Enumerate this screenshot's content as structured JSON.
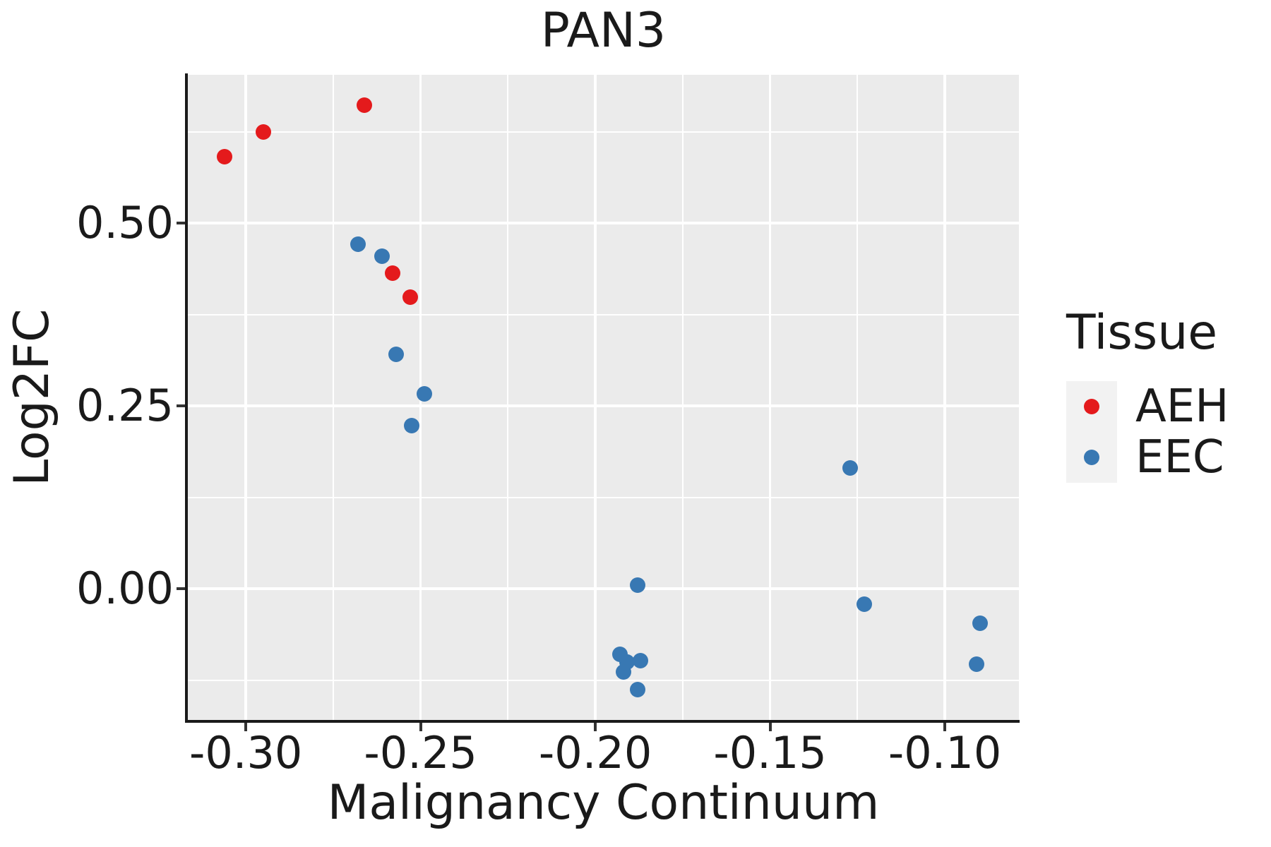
{
  "chart_data": {
    "type": "scatter",
    "title": "PAN3",
    "xlabel": "Malignancy Continuum",
    "ylabel": "Log2FC",
    "xlim": [
      -0.3166,
      -0.0788
    ],
    "ylim": [
      -0.1795,
      0.7027
    ],
    "x_ticks": [
      -0.3,
      -0.25,
      -0.2,
      -0.15,
      -0.1
    ],
    "x_tick_labels": [
      "-0.30",
      "-0.25",
      "-0.20",
      "-0.15",
      "-0.10"
    ],
    "x_minor": [
      -0.275,
      -0.225,
      -0.175,
      -0.125
    ],
    "y_ticks": [
      0.5,
      0.25,
      0.0
    ],
    "y_tick_labels": [
      "0.50",
      "0.25",
      "0.00"
    ],
    "y_minor": [
      0.625,
      0.375,
      0.125,
      -0.125
    ],
    "grid": true,
    "panel_background": "#EBEBEB",
    "gridline_color": "#ffffff",
    "legend_title": "Tissue",
    "legend_position": "right",
    "series": [
      {
        "name": "AEH",
        "color": "#E41A1C",
        "points": [
          [
            -0.306,
            0.591
          ],
          [
            -0.295,
            0.625
          ],
          [
            -0.266,
            0.661
          ],
          [
            -0.258,
            0.431
          ],
          [
            -0.253,
            0.399
          ]
        ]
      },
      {
        "name": "EEC",
        "color": "#3878B3",
        "points": [
          [
            -0.268,
            0.471
          ],
          [
            -0.261,
            0.455
          ],
          [
            -0.257,
            0.32
          ],
          [
            -0.249,
            0.266
          ],
          [
            -0.2525,
            0.223
          ],
          [
            -0.188,
            0.005
          ],
          [
            -0.193,
            -0.09
          ],
          [
            -0.191,
            -0.1
          ],
          [
            -0.187,
            -0.098
          ],
          [
            -0.192,
            -0.114
          ],
          [
            -0.188,
            -0.138
          ],
          [
            -0.127,
            0.165
          ],
          [
            -0.123,
            -0.021
          ],
          [
            -0.09,
            -0.047
          ],
          [
            -0.091,
            -0.103
          ]
        ]
      }
    ]
  }
}
